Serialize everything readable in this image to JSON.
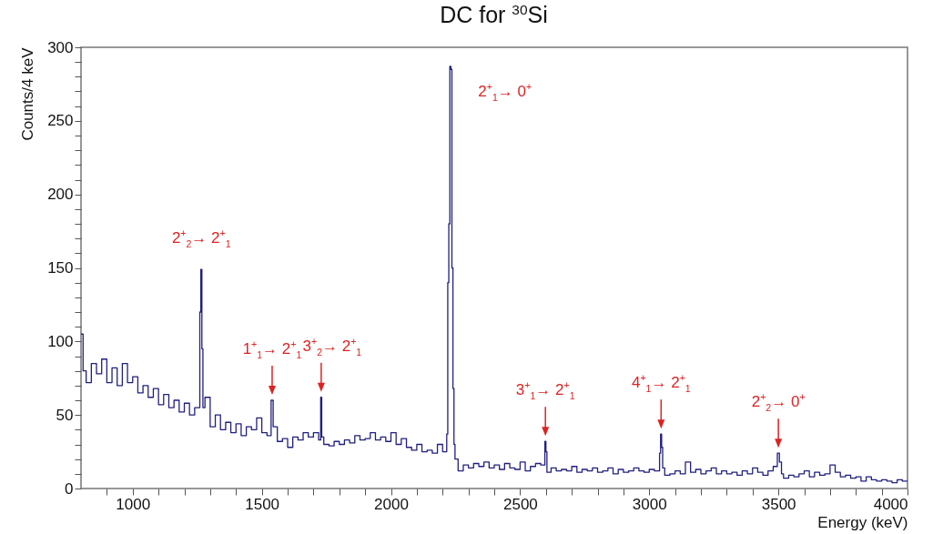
{
  "chart_data": {
    "type": "histogram",
    "title": "DC for $^{30}$Si",
    "xlabel": "Energy (keV)",
    "ylabel": "Counts/4 keV",
    "color": "#20207f",
    "xlim": [
      800,
      4000
    ],
    "ylim": [
      0,
      300
    ],
    "xticks": [
      {
        "value": 900,
        "label": null
      },
      1000,
      {
        "value": 1100,
        "label": null
      },
      {
        "value": 1200,
        "label": null
      },
      {
        "value": 1300,
        "label": null
      },
      {
        "value": 1400,
        "label": null
      },
      1500,
      {
        "value": 1600,
        "label": null
      },
      {
        "value": 1700,
        "label": null
      },
      {
        "value": 1800,
        "label": null
      },
      {
        "value": 1900,
        "label": null
      },
      2000,
      {
        "value": 2100,
        "label": null
      },
      {
        "value": 2200,
        "label": null
      },
      {
        "value": 2300,
        "label": null
      },
      {
        "value": 2400,
        "label": null
      },
      2500,
      {
        "value": 2600,
        "label": null
      },
      {
        "value": 2700,
        "label": null
      },
      {
        "value": 2800,
        "label": null
      },
      {
        "value": 2900,
        "label": null
      },
      3000,
      {
        "value": 3100,
        "label": null
      },
      {
        "value": 3200,
        "label": null
      },
      {
        "value": 3300,
        "label": null
      },
      {
        "value": 3400,
        "label": null
      },
      3500,
      {
        "value": 3600,
        "label": null
      },
      {
        "value": 3700,
        "label": null
      },
      {
        "value": 3800,
        "label": null
      },
      {
        "value": 3900,
        "label": null
      },
      4000
    ],
    "yticks": [
      0,
      {
        "value": 10,
        "label": null
      },
      {
        "value": 20,
        "label": null
      },
      {
        "value": 30,
        "label": null
      },
      {
        "value": 40,
        "label": null
      },
      50,
      {
        "value": 60,
        "label": null
      },
      {
        "value": 70,
        "label": null
      },
      {
        "value": 80,
        "label": null
      },
      {
        "value": 90,
        "label": null
      },
      100,
      {
        "value": 110,
        "label": null
      },
      {
        "value": 120,
        "label": null
      },
      {
        "value": 130,
        "label": null
      },
      {
        "value": 140,
        "label": null
      },
      150,
      {
        "value": 160,
        "label": null
      },
      {
        "value": 170,
        "label": null
      },
      {
        "value": 180,
        "label": null
      },
      {
        "value": 190,
        "label": null
      },
      200,
      {
        "value": 210,
        "label": null
      },
      {
        "value": 220,
        "label": null
      },
      {
        "value": 230,
        "label": null
      },
      {
        "value": 240,
        "label": null
      },
      250,
      {
        "value": 260,
        "label": null
      },
      {
        "value": 270,
        "label": null
      },
      {
        "value": 280,
        "label": null
      },
      {
        "value": 290,
        "label": null
      },
      300
    ],
    "bins": [
      800,
      808,
      820,
      840,
      860,
      880,
      900,
      920,
      940,
      960,
      980,
      1000,
      1020,
      1040,
      1060,
      1080,
      1100,
      1120,
      1140,
      1160,
      1180,
      1200,
      1220,
      1240,
      1260,
      1264,
      1268,
      1272,
      1280,
      1300,
      1320,
      1340,
      1360,
      1380,
      1400,
      1420,
      1440,
      1460,
      1480,
      1500,
      1520,
      1536,
      1544,
      1560,
      1580,
      1600,
      1620,
      1640,
      1660,
      1680,
      1700,
      1720,
      1728,
      1732,
      1740,
      1760,
      1780,
      1800,
      1820,
      1840,
      1860,
      1880,
      1900,
      1920,
      1940,
      1960,
      1980,
      2000,
      2020,
      2040,
      2060,
      2080,
      2100,
      2120,
      2140,
      2160,
      2180,
      2200,
      2216,
      2220,
      2224,
      2228,
      2232,
      2236,
      2240,
      2244,
      2248,
      2260,
      2280,
      2300,
      2320,
      2340,
      2360,
      2380,
      2400,
      2420,
      2440,
      2460,
      2480,
      2500,
      2520,
      2540,
      2560,
      2580,
      2596,
      2600,
      2604,
      2620,
      2640,
      2660,
      2680,
      2700,
      2720,
      2740,
      2760,
      2780,
      2800,
      2820,
      2840,
      2860,
      2880,
      2900,
      2920,
      2940,
      2960,
      2980,
      3000,
      3020,
      3040,
      3044,
      3048,
      3052,
      3060,
      3080,
      3100,
      3120,
      3140,
      3160,
      3180,
      3200,
      3220,
      3240,
      3260,
      3280,
      3300,
      3320,
      3340,
      3360,
      3380,
      3400,
      3420,
      3440,
      3460,
      3480,
      3496,
      3504,
      3512,
      3520,
      3540,
      3560,
      3580,
      3600,
      3620,
      3640,
      3660,
      3680,
      3700,
      3720,
      3740,
      3760,
      3780,
      3800,
      3820,
      3840,
      3860,
      3880,
      3900,
      3920,
      3940,
      3960,
      3980,
      4000
    ],
    "values": [
      105,
      80,
      72,
      85,
      78,
      88,
      72,
      82,
      70,
      85,
      72,
      76,
      65,
      70,
      62,
      68,
      57,
      64,
      55,
      60,
      52,
      58,
      50,
      55,
      120,
      149,
      95,
      55,
      62,
      42,
      50,
      40,
      45,
      38,
      44,
      36,
      42,
      40,
      48,
      38,
      36,
      60,
      42,
      32,
      34,
      28,
      35,
      33,
      38,
      35,
      38,
      33,
      62,
      35,
      30,
      29,
      32,
      30,
      33,
      31,
      36,
      33,
      34,
      38,
      33,
      35,
      32,
      38,
      30,
      34,
      28,
      26,
      30,
      25,
      26,
      24,
      30,
      25,
      37,
      140,
      180,
      287,
      285,
      150,
      68,
      30,
      20,
      12,
      16,
      14,
      17,
      15,
      18,
      14,
      16,
      13,
      17,
      14,
      13,
      18,
      12,
      15,
      17,
      16,
      32,
      25,
      11,
      14,
      12,
      13,
      12,
      15,
      11,
      13,
      12,
      14,
      11,
      12,
      14,
      10,
      13,
      11,
      12,
      14,
      12,
      11,
      13,
      12,
      24,
      37,
      28,
      14,
      9,
      10,
      12,
      10,
      18,
      11,
      13,
      10,
      12,
      14,
      10,
      12,
      10,
      11,
      9,
      12,
      10,
      14,
      11,
      9,
      12,
      15,
      24,
      18,
      10,
      7,
      9,
      8,
      10,
      12,
      8,
      11,
      9,
      10,
      16,
      11,
      8,
      9,
      7,
      8,
      5,
      8,
      6,
      5,
      6,
      5,
      4,
      6,
      5
    ],
    "annotations": [
      {
        "text": "2$^{+}$$_{2}$→ 2$^{+}$$_{1}$",
        "x": 1266,
        "y": 149
      },
      {
        "text": "1$^{+}$$_{1}$→ 2$^{+}$$_{1}$",
        "x": 1540,
        "y": 60
      },
      {
        "text": "3$^{+}$$_{2}$→ 2$^{+}$$_{1}$",
        "x": 1730,
        "y": 62
      },
      {
        "text": "2$^{+}$$_{1}$→ 0$^{+}$",
        "x": 2230,
        "y": 287
      },
      {
        "text": "3$^{+}$$_{1}$→ 2$^{+}$$_{1}$",
        "x": 2598,
        "y": 32
      },
      {
        "text": "4$^{+}$$_{1}$→ 2$^{+}$$_{1}$",
        "x": 3046,
        "y": 37
      },
      {
        "text": "2$^{+}$$_{2}$→ 0$^{+}$",
        "x": 3500,
        "y": 24
      }
    ]
  }
}
